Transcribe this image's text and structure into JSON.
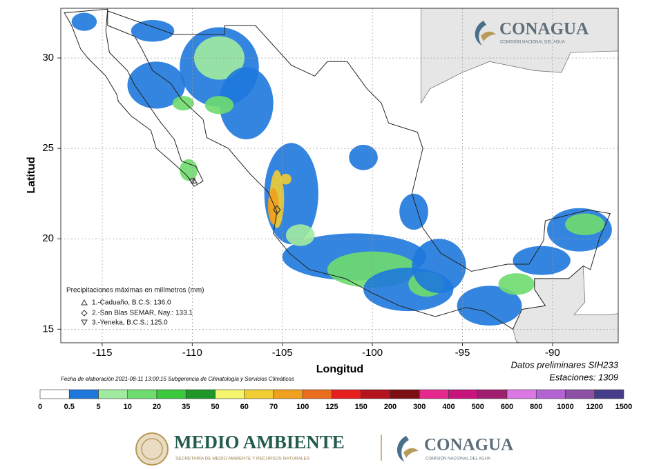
{
  "map": {
    "xlabel": "Longitud",
    "ylabel": "Latitud",
    "xlim": [
      -117.3,
      -86.35
    ],
    "ylim": [
      14.25,
      32.75
    ],
    "xticks": [
      -115,
      -110,
      -105,
      -100,
      -95,
      -90
    ],
    "yticks": [
      15,
      20,
      25,
      30
    ],
    "grid": true,
    "legend": {
      "title": "Precipitaciones máximas en milímetros (mm)",
      "items": [
        "1.-Caduaño, B.C.S: 136.0",
        "2.-San Blas SEMAR, Nay.: 133.1",
        "3.-Yeneka, B.C.S.: 125.0"
      ]
    },
    "notes": [
      "Datos preliminares SIH233",
      "Estaciones:  1309"
    ],
    "footer": "Fecha de elaboración 2021-08-11 13:00:15 Subgerencia de Climatología y Servicios Climáticos"
  },
  "colorbar": {
    "ticks": [
      0,
      0.5,
      5,
      10,
      20,
      35,
      50,
      60,
      70,
      100,
      125,
      150,
      200,
      300,
      400,
      500,
      600,
      800,
      1000,
      1200,
      1500
    ],
    "colors": [
      "#ffffff",
      "#1e78dc",
      "#a0eba0",
      "#6edc6e",
      "#3cc83c",
      "#1e9628",
      "#f5f56e",
      "#f0cd32",
      "#f0a01e",
      "#eb6e1e",
      "#e61e1e",
      "#b4141e",
      "#7d0f14",
      "#e6288c",
      "#c8147d",
      "#a01e6e",
      "#dc78e6",
      "#b464d2",
      "#8c50a5",
      "#463c8c"
    ]
  },
  "logos": {
    "top": {
      "name": "CONAGUA",
      "sub": "COMISIÓN NACIONAL DEL AGUA"
    },
    "bottom_left": {
      "name": "MEDIO AMBIENTE",
      "sub": "SECRETARÍA DE MEDIO AMBIENTE Y RECURSOS NATURALES"
    },
    "bottom_right": {
      "name": "CONAGUA",
      "sub": "COMISIÓN NACIONAL DEL AGUA"
    }
  }
}
